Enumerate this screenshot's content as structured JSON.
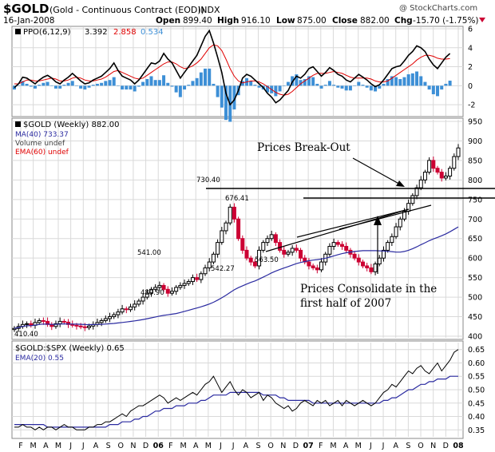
{
  "header": {
    "symbol": "$GOLD",
    "description": "(Gold - Continuous Contract (EOD))",
    "exchange": "INDX",
    "watermark": "@ StockCharts.com",
    "date": "16-Jan-2008",
    "open_label": "Open",
    "open": "899.40",
    "high_label": "High",
    "high": "916.10",
    "low_label": "Low",
    "low": "875.00",
    "close_label": "Close",
    "close": "882.00",
    "chg_label": "Chg",
    "chg": "-15.70 (-1.75%)"
  },
  "colors": {
    "price_up": "#000000",
    "price_down": "#cc0033",
    "ma": "#2a2aa0",
    "ema_red": "#e00000",
    "histogram": "#3d8fd6",
    "grid": "#d9d9d9"
  },
  "chart_data": [
    {
      "type": "line",
      "panel": "ppo",
      "legend": {
        "label": "PPO(6,12,9)",
        "v1": "3.392",
        "v2": "2.858",
        "v3": "0.534"
      },
      "ylim": [
        -3,
        6
      ],
      "y_ticks": [
        "6",
        "4",
        "2",
        "0",
        "-2"
      ],
      "series": [
        {
          "name": "PPO(6,12,9)",
          "values": [
            -0.2,
            0.2,
            0.9,
            0.8,
            0.5,
            0.2,
            0.6,
            0.9,
            1.1,
            0.8,
            0.4,
            0.2,
            0.6,
            0.9,
            1.3,
            0.9,
            0.5,
            0.2,
            0.3,
            0.6,
            0.8,
            1.0,
            1.4,
            1.8,
            2.4,
            1.6,
            1.0,
            0.8,
            0.6,
            0.2,
            0.6,
            1.2,
            1.8,
            2.4,
            2.3,
            2.6,
            3.4,
            2.8,
            2.4,
            1.6,
            0.8,
            1.4,
            2.0,
            2.6,
            3.2,
            4.2,
            5.2,
            5.8,
            4.5,
            3.0,
            1.4,
            -0.8,
            -2.0,
            -1.5,
            -0.5,
            0.8,
            1.2,
            1.0,
            0.6,
            0.2,
            -0.2,
            -0.8,
            -1.2,
            -1.8,
            -1.5,
            -1.0,
            -0.5,
            0.4,
            1.0,
            0.8,
            1.2,
            1.8,
            2.0,
            1.5,
            1.0,
            1.4,
            1.9,
            1.6,
            1.2,
            1.0,
            0.6,
            0.4,
            0.8,
            1.2,
            0.9,
            0.6,
            0.2,
            -0.1,
            0.1,
            0.6,
            1.2,
            1.8,
            2.0,
            2.1,
            2.6,
            3.2,
            3.6,
            4.2,
            4.0,
            3.6,
            2.8,
            2.2,
            1.8,
            2.4,
            3.0,
            3.392
          ]
        },
        {
          "name": "Signal",
          "values": [
            0.2,
            0.2,
            0.4,
            0.6,
            0.6,
            0.5,
            0.5,
            0.6,
            0.7,
            0.8,
            0.7,
            0.5,
            0.5,
            0.6,
            0.8,
            0.9,
            0.8,
            0.6,
            0.5,
            0.5,
            0.6,
            0.7,
            0.9,
            1.2,
            1.5,
            1.6,
            1.4,
            1.2,
            1.0,
            0.8,
            0.7,
            0.8,
            1.1,
            1.4,
            1.7,
            2.0,
            2.3,
            2.5,
            2.5,
            2.3,
            2.0,
            1.8,
            1.9,
            2.1,
            2.4,
            2.8,
            3.4,
            4.0,
            4.3,
            4.2,
            3.7,
            2.8,
            1.8,
            1.0,
            0.5,
            0.3,
            0.4,
            0.5,
            0.5,
            0.4,
            0.2,
            -0.1,
            -0.4,
            -0.7,
            -0.9,
            -1.0,
            -0.9,
            -0.6,
            -0.2,
            0.2,
            0.5,
            0.8,
            1.1,
            1.3,
            1.3,
            1.3,
            1.4,
            1.5,
            1.4,
            1.3,
            1.1,
            0.9,
            0.8,
            0.8,
            0.8,
            0.8,
            0.7,
            0.5,
            0.4,
            0.4,
            0.5,
            0.8,
            1.1,
            1.4,
            1.7,
            2.0,
            2.3,
            2.7,
            3.0,
            3.2,
            3.2,
            3.1,
            2.9,
            2.8,
            2.8,
            2.858
          ]
        }
      ]
    },
    {
      "type": "candlestick",
      "panel": "price",
      "legend": [
        {
          "label": "$GOLD (Weekly) 882.00"
        },
        {
          "label": "MA(40) 733.37"
        },
        {
          "label": "Volume undef"
        },
        {
          "label": "EMA(60) undef"
        }
      ],
      "ylim": [
        400,
        950
      ],
      "y_ticks": [
        "950",
        "900",
        "850",
        "800",
        "750",
        "700",
        "650",
        "600",
        "550",
        "500",
        "450",
        "400"
      ],
      "x_ticks": [
        "F",
        "M",
        "A",
        "M",
        "J",
        "J",
        "A",
        "S",
        "O",
        "N",
        "D",
        "06",
        "F",
        "M",
        "A",
        "M",
        "J",
        "J",
        "A",
        "S",
        "O",
        "N",
        "D",
        "07",
        "F",
        "M",
        "A",
        "M",
        "J",
        "J",
        "A",
        "S",
        "O",
        "N",
        "D",
        "08"
      ],
      "close": [
        420,
        425,
        430,
        432,
        428,
        435,
        440,
        438,
        430,
        425,
        432,
        438,
        436,
        430,
        428,
        426,
        424,
        422,
        426,
        430,
        435,
        440,
        445,
        450,
        455,
        462,
        470,
        468,
        475,
        482,
        490,
        500,
        510,
        520,
        525,
        530,
        520,
        510,
        515,
        525,
        530,
        535,
        540,
        550,
        545,
        560,
        575,
        590,
        610,
        640,
        670,
        690,
        730.4,
        700,
        650,
        620,
        600,
        590,
        580,
        620,
        640,
        650,
        660,
        640,
        620,
        610,
        615,
        625,
        620,
        600,
        590,
        580,
        575,
        570,
        590,
        610,
        630,
        640,
        635,
        630,
        620,
        610,
        600,
        590,
        580,
        575,
        565,
        585,
        600,
        620,
        640,
        655,
        680,
        700,
        720,
        740,
        760,
        780,
        800,
        820,
        850,
        830,
        820,
        805,
        810,
        830,
        860,
        882
      ]
    },
    {
      "type": "line",
      "panel": "ratio",
      "legend": [
        {
          "label": "$GOLD:$SPX (Weekly) 0.65"
        },
        {
          "label": "EMA(20) 0.55"
        }
      ],
      "ylim": [
        0.33,
        0.67
      ],
      "y_ticks": [
        "0.65",
        "0.60",
        "0.55",
        "0.50",
        "0.45",
        "0.40",
        "0.35"
      ],
      "series": [
        {
          "name": "$GOLD:$SPX (Weekly)",
          "values": [
            0.36,
            0.36,
            0.37,
            0.36,
            0.36,
            0.35,
            0.36,
            0.35,
            0.36,
            0.36,
            0.35,
            0.36,
            0.37,
            0.36,
            0.36,
            0.35,
            0.35,
            0.35,
            0.36,
            0.36,
            0.37,
            0.37,
            0.38,
            0.38,
            0.39,
            0.4,
            0.41,
            0.4,
            0.42,
            0.43,
            0.44,
            0.44,
            0.45,
            0.46,
            0.47,
            0.48,
            0.47,
            0.45,
            0.46,
            0.47,
            0.46,
            0.47,
            0.48,
            0.49,
            0.48,
            0.5,
            0.52,
            0.53,
            0.55,
            0.52,
            0.49,
            0.51,
            0.53,
            0.5,
            0.48,
            0.5,
            0.49,
            0.47,
            0.48,
            0.49,
            0.46,
            0.48,
            0.47,
            0.45,
            0.44,
            0.43,
            0.44,
            0.42,
            0.43,
            0.45,
            0.46,
            0.45,
            0.44,
            0.46,
            0.45,
            0.46,
            0.44,
            0.45,
            0.46,
            0.44,
            0.46,
            0.45,
            0.44,
            0.45,
            0.46,
            0.45,
            0.44,
            0.45,
            0.47,
            0.49,
            0.5,
            0.52,
            0.51,
            0.53,
            0.55,
            0.57,
            0.56,
            0.58,
            0.59,
            0.57,
            0.56,
            0.58,
            0.6,
            0.57,
            0.59,
            0.61,
            0.64,
            0.65
          ]
        },
        {
          "name": "EMA(20)",
          "values": [
            0.37,
            0.37,
            0.37,
            0.37,
            0.37,
            0.37,
            0.37,
            0.37,
            0.36,
            0.36,
            0.36,
            0.36,
            0.36,
            0.36,
            0.36,
            0.36,
            0.36,
            0.36,
            0.36,
            0.36,
            0.36,
            0.36,
            0.36,
            0.37,
            0.37,
            0.37,
            0.38,
            0.38,
            0.38,
            0.39,
            0.39,
            0.4,
            0.4,
            0.41,
            0.42,
            0.42,
            0.43,
            0.43,
            0.43,
            0.44,
            0.44,
            0.44,
            0.45,
            0.45,
            0.45,
            0.46,
            0.46,
            0.47,
            0.48,
            0.48,
            0.48,
            0.48,
            0.49,
            0.49,
            0.49,
            0.49,
            0.49,
            0.49,
            0.49,
            0.49,
            0.48,
            0.48,
            0.48,
            0.48,
            0.47,
            0.47,
            0.46,
            0.46,
            0.46,
            0.46,
            0.46,
            0.46,
            0.45,
            0.45,
            0.45,
            0.45,
            0.45,
            0.45,
            0.45,
            0.45,
            0.45,
            0.45,
            0.45,
            0.45,
            0.45,
            0.45,
            0.45,
            0.45,
            0.45,
            0.46,
            0.46,
            0.47,
            0.47,
            0.48,
            0.49,
            0.5,
            0.5,
            0.51,
            0.52,
            0.52,
            0.53,
            0.53,
            0.54,
            0.54,
            0.54,
            0.55,
            0.55,
            0.55
          ]
        }
      ]
    }
  ],
  "price_labels": [
    "730.40",
    "676.41",
    "541.00",
    "542.27",
    "563.50",
    "489.90",
    "410.40"
  ],
  "annotations": {
    "breakout": "Prices Break-Out",
    "consolidate_line1": "Prices Consolidate in the",
    "consolidate_line2": "first half of 2007"
  }
}
